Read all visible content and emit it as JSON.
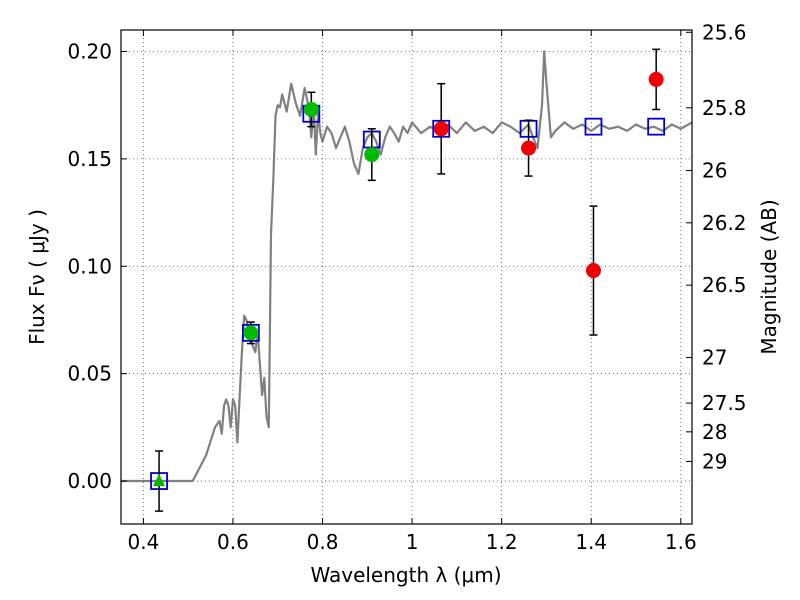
{
  "chart_data": {
    "type": "scatter",
    "xlabel": "Wavelength  λ (μm)",
    "ylabel": "Flux  Fν  ( μJy )",
    "y2label": "Magnitude (AB)",
    "xlim": [
      0.35,
      1.625
    ],
    "ylim": [
      -0.02,
      0.21
    ],
    "grid": true,
    "x_ticks": [
      0.4,
      0.6,
      0.8,
      1.0,
      1.2,
      1.4,
      1.6
    ],
    "x_tick_labels": [
      "0.4",
      "0.6",
      "0.8",
      "1",
      "1.2",
      "1.4",
      "1.6"
    ],
    "y_ticks": [
      0.0,
      0.05,
      0.1,
      0.15,
      0.2
    ],
    "y_tick_labels": [
      "0.00",
      "0.05",
      "0.10",
      "0.15",
      "0.20"
    ],
    "y2_ticks": [
      {
        "label": "25.6",
        "mag": 25.6
      },
      {
        "label": "25.8",
        "mag": 25.8
      },
      {
        "label": "26",
        "mag": 26.0
      },
      {
        "label": "26.2",
        "mag": 26.2
      },
      {
        "label": "26.5",
        "mag": 26.5
      },
      {
        "label": "27",
        "mag": 27.0
      },
      {
        "label": "27.5",
        "mag": 27.5
      },
      {
        "label": "28",
        "mag": 28.0
      },
      {
        "label": "29",
        "mag": 29.0
      }
    ],
    "colors": {
      "model": "#808080",
      "green": "#00bb00",
      "red": "#ee0000",
      "box": "#0000cc",
      "errorbar": "#000000",
      "grid": "#555555"
    },
    "series": [
      {
        "marker": "line",
        "x": [
          0.35,
          0.5,
          0.51,
          0.54,
          0.56,
          0.57,
          0.575,
          0.58,
          0.585,
          0.59,
          0.595,
          0.6,
          0.605,
          0.61,
          0.615,
          0.62,
          0.625,
          0.63,
          0.64,
          0.65,
          0.655,
          0.66,
          0.665,
          0.67,
          0.675,
          0.68,
          0.685,
          0.69,
          0.695,
          0.7,
          0.705,
          0.71,
          0.72,
          0.73,
          0.74,
          0.75,
          0.76,
          0.765,
          0.77,
          0.775,
          0.78,
          0.785,
          0.79,
          0.795,
          0.8,
          0.81,
          0.82,
          0.83,
          0.84,
          0.85,
          0.86,
          0.87,
          0.88,
          0.89,
          0.9,
          0.91,
          0.92,
          0.93,
          0.94,
          0.95,
          0.96,
          0.97,
          0.98,
          0.99,
          1.0,
          1.02,
          1.04,
          1.06,
          1.08,
          1.1,
          1.12,
          1.14,
          1.16,
          1.18,
          1.2,
          1.22,
          1.24,
          1.26,
          1.27,
          1.28,
          1.285,
          1.29,
          1.295,
          1.3,
          1.31,
          1.32,
          1.34,
          1.36,
          1.38,
          1.4,
          1.42,
          1.44,
          1.46,
          1.48,
          1.5,
          1.52,
          1.54,
          1.56,
          1.58,
          1.6,
          1.625
        ],
        "y": [
          0.0,
          0.0,
          0.0,
          0.012,
          0.025,
          0.028,
          0.022,
          0.035,
          0.038,
          0.035,
          0.025,
          0.038,
          0.035,
          0.018,
          0.04,
          0.06,
          0.077,
          0.075,
          0.065,
          0.06,
          0.07,
          0.055,
          0.04,
          0.048,
          0.03,
          0.025,
          0.115,
          0.14,
          0.17,
          0.175,
          0.174,
          0.18,
          0.172,
          0.185,
          0.176,
          0.17,
          0.183,
          0.178,
          0.173,
          0.16,
          0.175,
          0.152,
          0.172,
          0.162,
          0.158,
          0.165,
          0.162,
          0.155,
          0.16,
          0.165,
          0.158,
          0.148,
          0.143,
          0.155,
          0.16,
          0.162,
          0.158,
          0.152,
          0.16,
          0.165,
          0.162,
          0.158,
          0.165,
          0.162,
          0.167,
          0.162,
          0.165,
          0.163,
          0.166,
          0.162,
          0.167,
          0.163,
          0.165,
          0.162,
          0.167,
          0.165,
          0.162,
          0.166,
          0.16,
          0.155,
          0.165,
          0.175,
          0.2,
          0.185,
          0.16,
          0.163,
          0.167,
          0.164,
          0.166,
          0.163,
          0.166,
          0.164,
          0.165,
          0.163,
          0.166,
          0.164,
          0.165,
          0.163,
          0.166,
          0.164,
          0.167
        ]
      },
      {
        "marker": "blue-square",
        "x": [
          0.435,
          0.64,
          0.775,
          0.91,
          1.065,
          1.26,
          1.405,
          1.545
        ],
        "y": [
          0.0,
          0.069,
          0.171,
          0.159,
          0.164,
          0.164,
          0.165,
          0.165
        ]
      },
      {
        "marker": "green-circle",
        "x": [
          0.64,
          0.775,
          0.91
        ],
        "y": [
          0.069,
          0.173,
          0.152
        ],
        "yerr": [
          0.005,
          0.008,
          0.012
        ]
      },
      {
        "marker": "green-triangle",
        "x": [
          0.435
        ],
        "y": [
          0.0
        ],
        "yerr": [
          0.014
        ]
      },
      {
        "marker": "red-circle",
        "x": [
          1.065,
          1.26,
          1.405,
          1.545
        ],
        "y": [
          0.164,
          0.155,
          0.098,
          0.187
        ],
        "yerr": [
          0.021,
          0.013,
          0.03,
          0.014
        ]
      }
    ]
  }
}
